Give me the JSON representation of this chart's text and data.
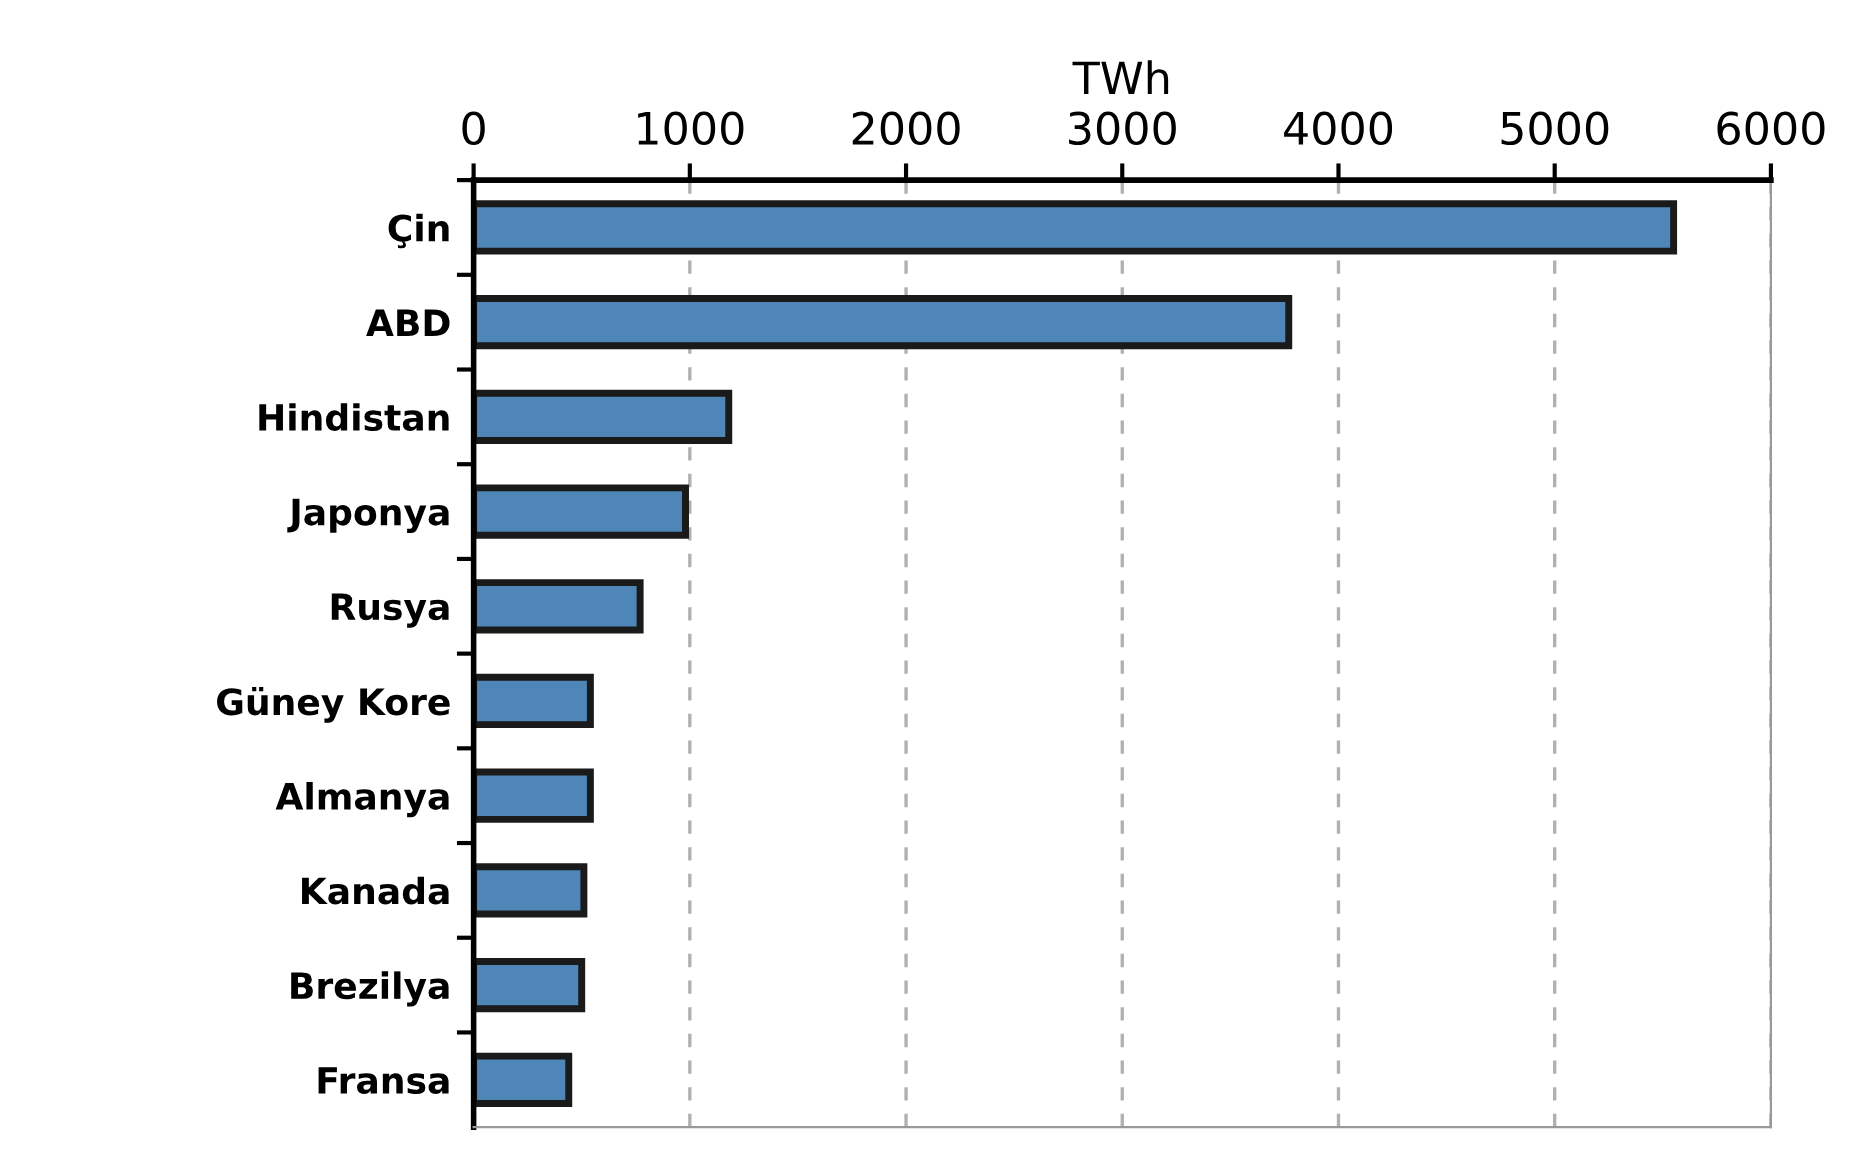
{
  "chart_data": {
    "type": "bar",
    "orientation": "horizontal",
    "xlabel": "TWh",
    "categories": [
      "Çin",
      "ABD",
      "Hindistan",
      "Japonya",
      "Rusya",
      "Güney Kore",
      "Almanya",
      "Kanada",
      "Brezilya",
      "Fransa"
    ],
    "values": [
      5550,
      3770,
      1180,
      980,
      770,
      540,
      540,
      510,
      500,
      440
    ],
    "color": "#4f86b8",
    "xlim": [
      0,
      6000
    ],
    "xticks": [
      0,
      1000,
      2000,
      3000,
      4000,
      5000,
      6000
    ],
    "grid": "x"
  }
}
